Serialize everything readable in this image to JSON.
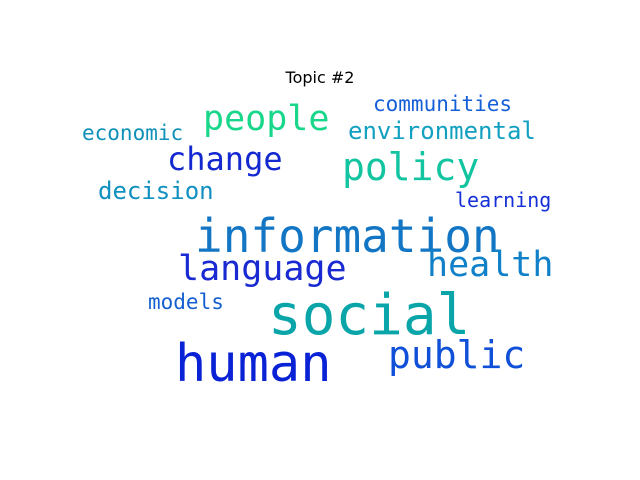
{
  "chart_data": {
    "type": "wordcloud",
    "title": "Topic #2",
    "words": [
      {
        "text": "social",
        "weight": 1.0,
        "color": "#0aa5a8"
      },
      {
        "text": "human",
        "weight": 0.93,
        "color": "#0a22d6"
      },
      {
        "text": "information",
        "weight": 0.82,
        "color": "#1276c4"
      },
      {
        "text": "policy",
        "weight": 0.68,
        "color": "#12c4a0"
      },
      {
        "text": "public",
        "weight": 0.67,
        "color": "#1050d8"
      },
      {
        "text": "language",
        "weight": 0.63,
        "color": "#1a2ad2"
      },
      {
        "text": "health",
        "weight": 0.62,
        "color": "#1080c8"
      },
      {
        "text": "people",
        "weight": 0.62,
        "color": "#18d68a"
      },
      {
        "text": "change",
        "weight": 0.58,
        "color": "#1428d0"
      },
      {
        "text": "environmental",
        "weight": 0.42,
        "color": "#12a0c0"
      },
      {
        "text": "decision",
        "weight": 0.42,
        "color": "#1090c0"
      },
      {
        "text": "communities",
        "weight": 0.38,
        "color": "#1560d8"
      },
      {
        "text": "economic",
        "weight": 0.37,
        "color": "#1090b8"
      },
      {
        "text": "models",
        "weight": 0.37,
        "color": "#1560d0"
      },
      {
        "text": "learning",
        "weight": 0.36,
        "color": "#1530d8"
      }
    ]
  }
}
